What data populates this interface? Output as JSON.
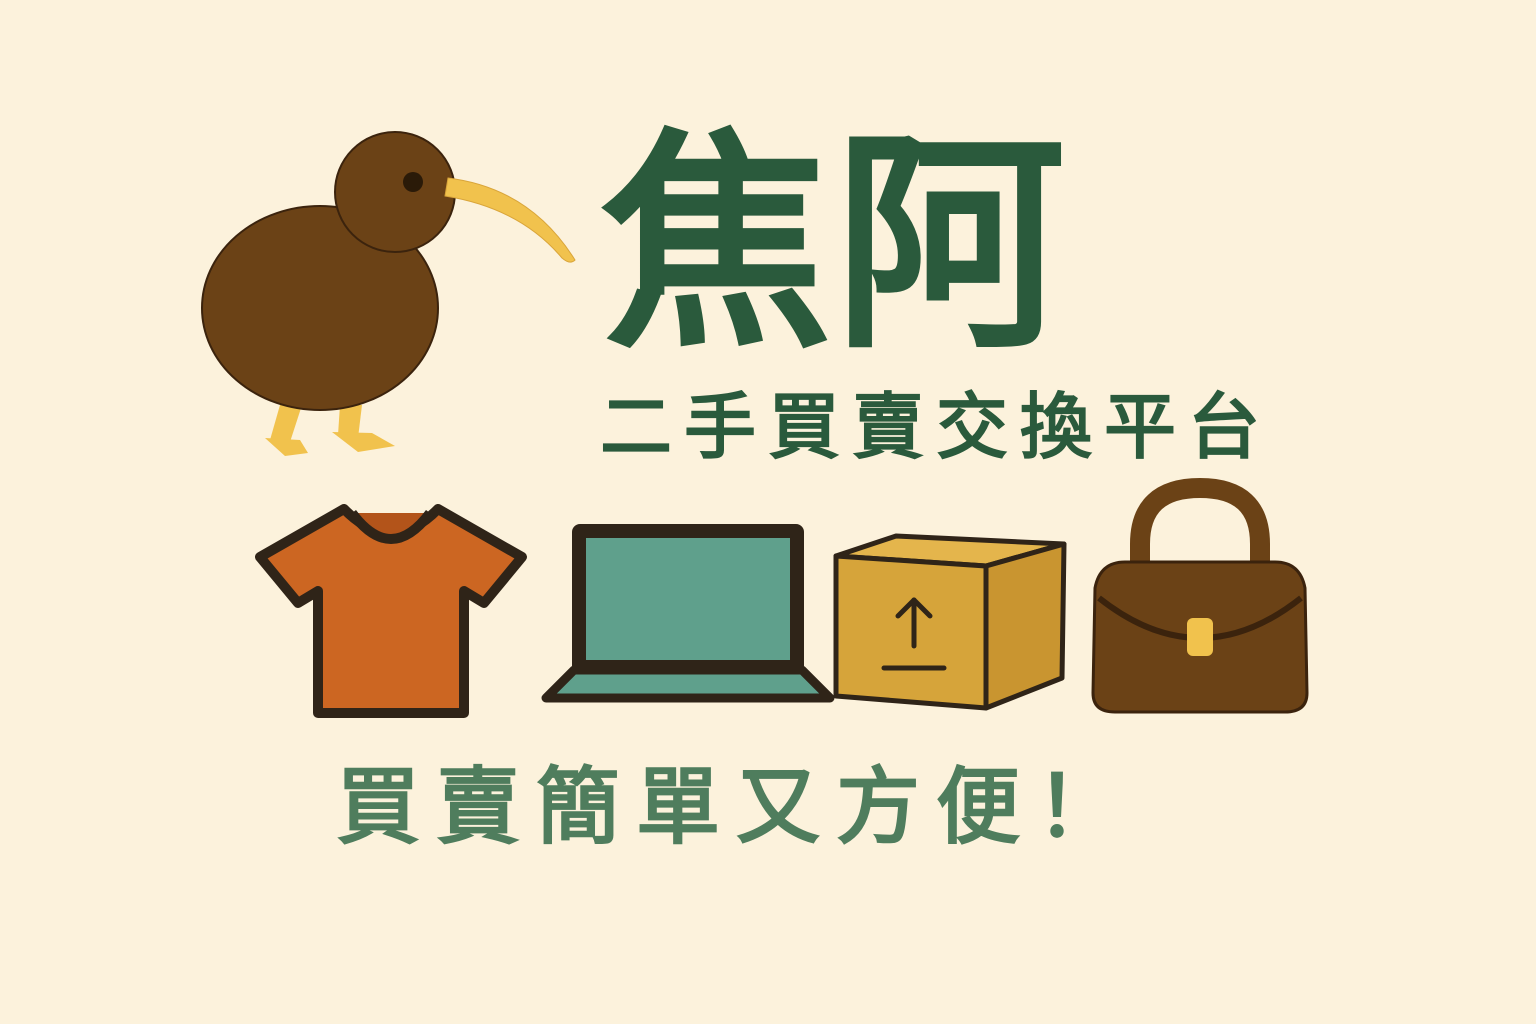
{
  "brand": {
    "name": "焦阿",
    "tagline": "二手買賣交換平台"
  },
  "slogan": "買賣簡單又方便！",
  "icons": [
    "kiwi-bird-icon",
    "tshirt-icon",
    "laptop-icon",
    "shipping-box-icon",
    "handbag-icon"
  ],
  "colors": {
    "background": "#fcf2dc",
    "title_green": "#2a5a3c",
    "slogan_green": "#4f7d5d",
    "kiwi_brown": "#6b4216",
    "beak_yellow": "#f1c24d",
    "shirt_orange": "#cc6622",
    "laptop_teal": "#5fa08c",
    "box_yellow": "#d6a43a",
    "bag_brown": "#6b4216",
    "outline_dark": "#2f2418"
  }
}
